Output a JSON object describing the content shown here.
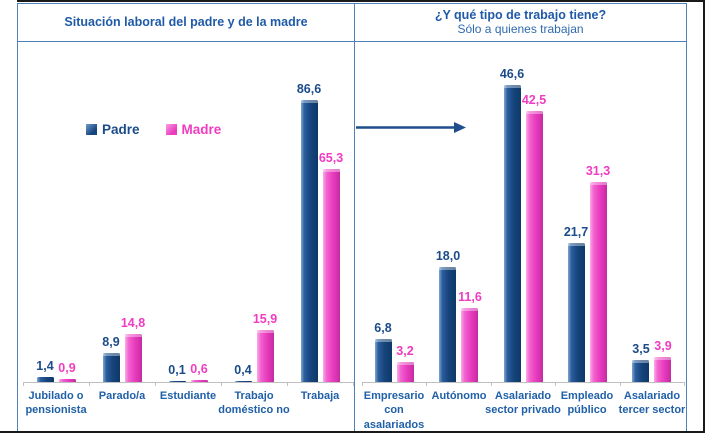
{
  "colors": {
    "padre_bar": "#17477E",
    "madre_bar": "#EE3FC0",
    "panel_border": "#4F81BD",
    "title_text": "#1F5AA8",
    "axis_line": "#BFBFBF",
    "outer_frame": "#1A1A1A",
    "arrow": "#1F4E8C"
  },
  "chart_data": [
    {
      "type": "bar",
      "title": "Situación laboral del padre y de la madre",
      "categories": [
        "Jubilado o pensionista",
        "Parado/a",
        "Estudiante",
        "Trabajo doméstico no",
        "Trabaja"
      ],
      "series": [
        {
          "name": "Padre",
          "color": "#17477E",
          "values": [
            1.4,
            8.9,
            0.1,
            0.4,
            86.6
          ]
        },
        {
          "name": "Madre",
          "color": "#EE3FC0",
          "values": [
            0.9,
            14.8,
            0.6,
            15.9,
            65.3
          ]
        }
      ],
      "ylim": [
        0,
        92
      ],
      "grid": false,
      "legend_position": "inside-upper-left",
      "value_label_format": "decimal-comma-1-place"
    },
    {
      "type": "bar",
      "title": "¿Y qué tipo de trabajo tiene?",
      "subtitle": "Sólo a quienes trabajan",
      "categories": [
        "Empresario con asalariados",
        "Autónomo",
        "Asalariado sector privado",
        "Empleado público",
        "Asalariado tercer sector"
      ],
      "series": [
        {
          "name": "Padre",
          "color": "#17477E",
          "values": [
            6.8,
            18.0,
            46.6,
            21.7,
            3.5
          ]
        },
        {
          "name": "Madre",
          "color": "#EE3FC0",
          "values": [
            3.2,
            11.6,
            42.5,
            31.3,
            3.9
          ]
        }
      ],
      "ylim": [
        0,
        47
      ],
      "grid": false,
      "legend_position": "none",
      "value_label_format": "decimal-comma-1-place"
    }
  ]
}
